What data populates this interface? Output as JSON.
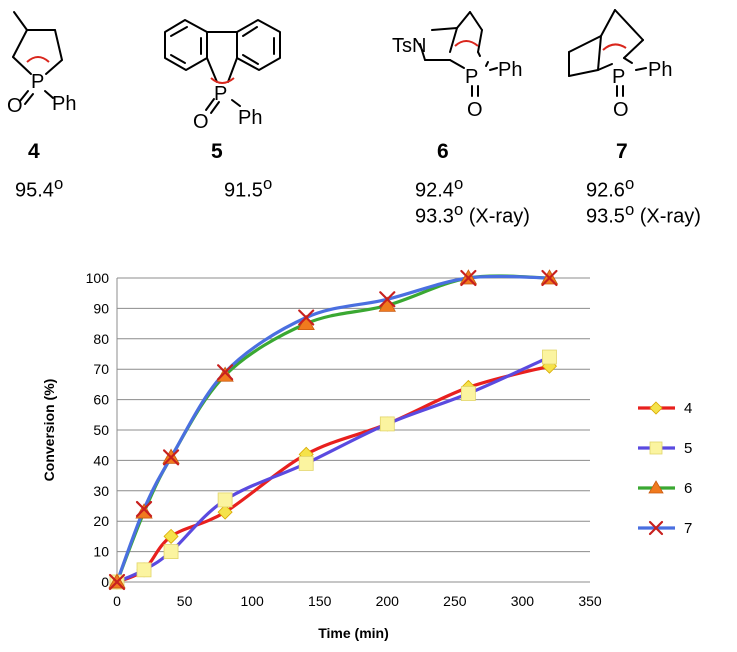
{
  "compounds": [
    {
      "id": "4",
      "angle": "95.4",
      "xray": ""
    },
    {
      "id": "5",
      "angle": "91.5",
      "xray": ""
    },
    {
      "id": "6",
      "angle": "92.4",
      "xray": "93.3"
    },
    {
      "id": "7",
      "angle": "92.6",
      "xray": "93.5"
    }
  ],
  "text": {
    "degree": "o",
    "xray_suffix": " (X-ray)",
    "atom_P": "P",
    "atom_O": "O",
    "atom_Ph": "Ph",
    "atom_TsN": "TsN"
  },
  "colors": {
    "arc": "#d9261c"
  },
  "chart_data": {
    "type": "line",
    "xlabel": "Time (min)",
    "ylabel": "Conversion (%)",
    "xlim": [
      0,
      350
    ],
    "ylim": [
      0,
      100
    ],
    "x_ticks": [
      0,
      50,
      100,
      150,
      200,
      250,
      300,
      350
    ],
    "y_ticks": [
      0,
      10,
      20,
      30,
      40,
      50,
      60,
      70,
      80,
      90,
      100
    ],
    "grid": "horizontal",
    "legend_position": "right",
    "series": [
      {
        "name": "4",
        "color": "#e8201e",
        "marker": "diamond",
        "marker_color": "#f5e24a",
        "x": [
          0,
          20,
          40,
          80,
          140,
          200,
          260,
          320
        ],
        "y": [
          0,
          4,
          15,
          23,
          42,
          52,
          64,
          71
        ]
      },
      {
        "name": "5",
        "color": "#5a4ae0",
        "marker": "square",
        "marker_color": "#fbf4a0",
        "x": [
          0,
          20,
          40,
          80,
          140,
          200,
          260,
          320
        ],
        "y": [
          0,
          4,
          10,
          27,
          39,
          52,
          62,
          74
        ]
      },
      {
        "name": "6",
        "color": "#3aa832",
        "marker": "triangle",
        "marker_color": "#f07a1e",
        "x": [
          0,
          20,
          40,
          80,
          140,
          200,
          260,
          320
        ],
        "y": [
          0,
          23,
          41,
          68,
          85,
          91,
          100,
          100
        ]
      },
      {
        "name": "7",
        "color": "#4a6fe0",
        "marker": "cross",
        "marker_color": "#c8201e",
        "x": [
          0,
          20,
          40,
          80,
          140,
          200,
          260,
          320
        ],
        "y": [
          0,
          24,
          41,
          69,
          87,
          93,
          100,
          100
        ]
      }
    ]
  }
}
